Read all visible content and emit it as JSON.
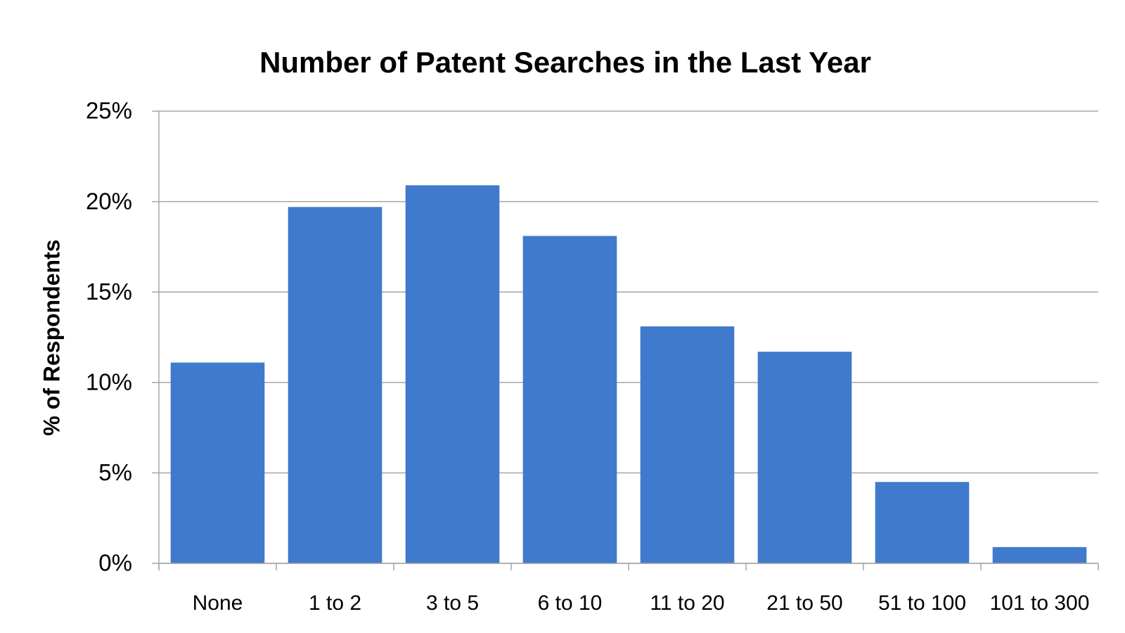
{
  "chart_data": {
    "type": "bar",
    "title": "Number of Patent Searches in the Last Year",
    "y_label": "% of Respondents",
    "categories": [
      "None",
      "1 to 2",
      "3 to 5",
      "6 to 10",
      "11 to 20",
      "21 to 50",
      "51 to 100",
      "101 to 300"
    ],
    "values": [
      11.1,
      19.7,
      20.9,
      18.1,
      13.1,
      11.7,
      4.5,
      0.9
    ],
    "color": "#3f7acc",
    "ylim": [
      0,
      25
    ],
    "yticks": [
      {
        "value": 0,
        "label": "0%"
      },
      {
        "value": 5,
        "label": "5%"
      },
      {
        "value": 10,
        "label": "10%"
      },
      {
        "value": 15,
        "label": "15%"
      },
      {
        "value": 20,
        "label": "20%"
      },
      {
        "value": 25,
        "label": "25%"
      }
    ],
    "grid": true
  }
}
